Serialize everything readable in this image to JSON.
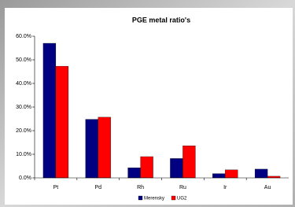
{
  "chart_data": {
    "type": "bar",
    "title": "PGE metal ratio's",
    "categories": [
      "Pt",
      "Pd",
      "Rh",
      "Ru",
      "Ir",
      "Au"
    ],
    "series": [
      {
        "name": "Merensky",
        "color": "#000080",
        "values": [
          57,
          24.8,
          4.3,
          8.2,
          1.8,
          3.7
        ]
      },
      {
        "name": "UG2",
        "color": "#ff0000",
        "values": [
          47.3,
          25.7,
          9,
          13.6,
          3.4,
          0.7
        ]
      }
    ],
    "ylim": [
      0,
      60
    ],
    "yticks": [
      {
        "value": 0,
        "label": "0.0%"
      },
      {
        "value": 10,
        "label": "10.0%"
      },
      {
        "value": 20,
        "label": "20.0%"
      },
      {
        "value": 30,
        "label": "30.0%"
      },
      {
        "value": 40,
        "label": "40.0%"
      },
      {
        "value": 50,
        "label": "50.0%"
      },
      {
        "value": 60,
        "label": "60.0%"
      }
    ],
    "grid": false,
    "legend": "bottom"
  }
}
